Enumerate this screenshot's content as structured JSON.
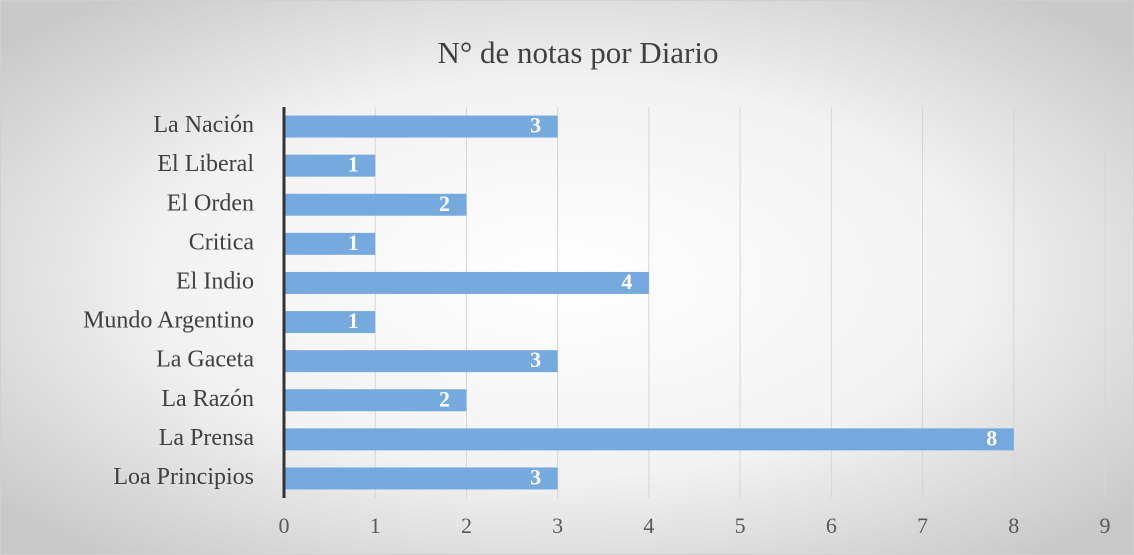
{
  "chart_data": {
    "type": "bar",
    "orientation": "horizontal",
    "title": "N° de notas por Diario",
    "categories": [
      "La Nación",
      "El Liberal",
      "El Orden",
      "Critica",
      "El Indio",
      "Mundo Argentino",
      "La Gaceta",
      "La Razón",
      "La Prensa",
      "Loa Principios"
    ],
    "values": [
      3,
      1,
      2,
      1,
      4,
      1,
      3,
      2,
      8,
      3
    ],
    "color": "#6fa5dc",
    "xlim": [
      0,
      9
    ],
    "xticks": [
      0,
      1,
      2,
      3,
      4,
      5,
      6,
      7,
      8,
      9
    ],
    "grid": true
  }
}
